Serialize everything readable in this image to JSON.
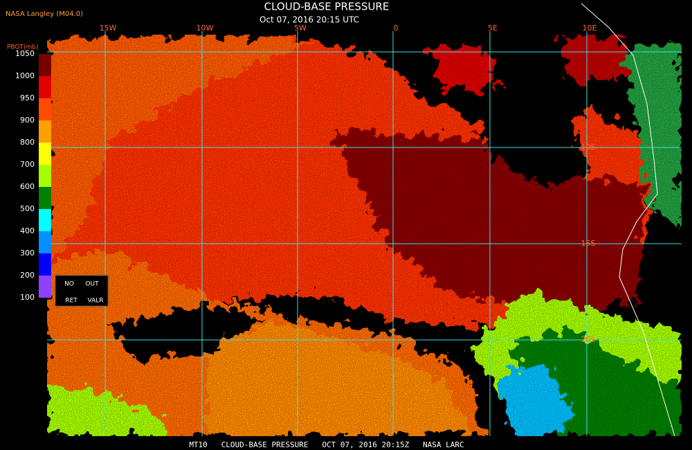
{
  "header": {
    "source": "NASA Langley (M04.0)",
    "title": "CLOUD-BASE PRESSURE",
    "subtitle": "Oct 07, 2016 20:15 UTC"
  },
  "map": {
    "longitude_labels": [
      "15W",
      "10W",
      "5W",
      "0",
      "5E",
      "10E"
    ],
    "latitude_labels": [
      "10S",
      "15S",
      "20S"
    ]
  },
  "legend": {
    "title": "PBOT(mb)",
    "tick_labels": [
      "1050",
      "1000",
      "950",
      "900",
      "800",
      "700",
      "600",
      "500",
      "400",
      "300",
      "200",
      "100"
    ],
    "colors": [
      "#7a0000",
      "#e00000",
      "#ff4a00",
      "#ffa000",
      "#ffff00",
      "#a8ff00",
      "#008000",
      "#00ffff",
      "#0090ff",
      "#0000ff",
      "#9040ff"
    ],
    "notes": [
      "NO",
      "OUT",
      "RET",
      "VALR"
    ]
  },
  "footer": "MT10   CLOUD-BASE PRESSURE   OCT 07, 2016 20:15Z   NASA LARC"
}
